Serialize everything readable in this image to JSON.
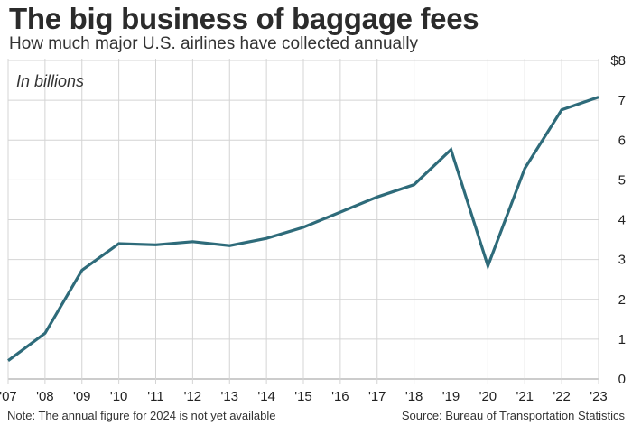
{
  "header": {
    "title": "The big business of baggage fees",
    "subtitle": "How much major U.S. airlines have collected annually"
  },
  "footer": {
    "note": "Note: The annual figure for 2024 is not yet available",
    "source": "Source: Bureau of Transportation Statistics"
  },
  "colors": {
    "line": "#2e6b7a",
    "grid": "#d4d4d4",
    "axis": "#999999"
  },
  "chart_data": {
    "type": "line",
    "title": "The big business of baggage fees",
    "subtitle": "How much major U.S. airlines have collected annually",
    "unit_label": "In billions",
    "categories": [
      "'07",
      "'08",
      "'09",
      "'10",
      "'11",
      "'12",
      "'13",
      "'14",
      "'15",
      "'16",
      "'17",
      "'18",
      "'19",
      "'20",
      "'21",
      "'22",
      "'23"
    ],
    "series": [
      {
        "name": "Baggage fees collected",
        "values": [
          0.46,
          1.15,
          2.73,
          3.4,
          3.37,
          3.45,
          3.35,
          3.53,
          3.81,
          4.19,
          4.57,
          4.88,
          5.76,
          2.84,
          5.29,
          6.76,
          7.08
        ]
      }
    ],
    "ylim": [
      0,
      8
    ],
    "yticks": [
      0,
      1,
      2,
      3,
      4,
      5,
      6,
      7,
      8
    ],
    "ytick_labels": [
      "0",
      "1",
      "2",
      "3",
      "4",
      "5",
      "6",
      "7",
      "$8"
    ],
    "xlabel": "",
    "ylabel": "",
    "grid": true,
    "y_axis_side": "right"
  }
}
